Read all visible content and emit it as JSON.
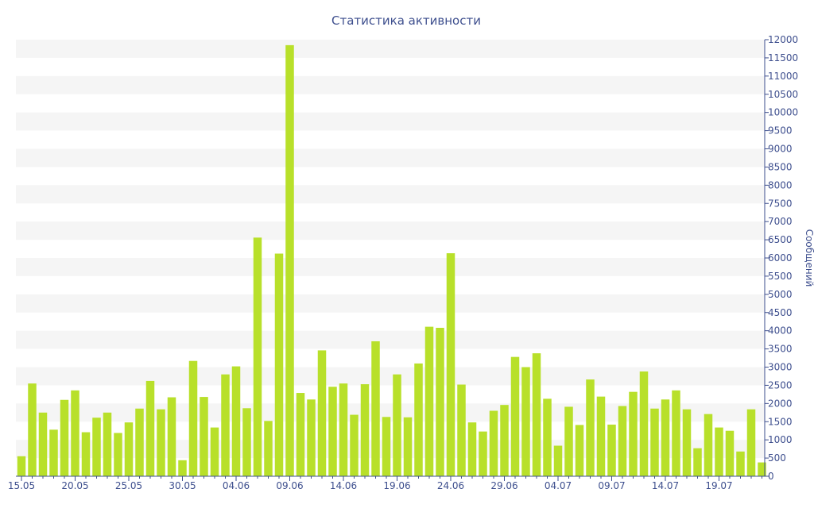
{
  "chart_data": {
    "type": "bar",
    "title": "Статистика активности",
    "ylabel": "Сообщений",
    "xlabel": "",
    "ylim": [
      0,
      12000
    ],
    "yticks": [
      0,
      500,
      1000,
      1500,
      2000,
      2500,
      3000,
      3500,
      4000,
      4500,
      5000,
      5500,
      6000,
      6500,
      7000,
      7500,
      8000,
      8500,
      9000,
      9500,
      10000,
      10500,
      11000,
      11500,
      12000
    ],
    "xtick_labels": [
      "15.05",
      "20.05",
      "25.05",
      "30.05",
      "04.06",
      "09.06",
      "14.06",
      "19.06",
      "24.06",
      "29.06",
      "04.07",
      "09.07",
      "14.07",
      "19.07"
    ],
    "xtick_every": 5,
    "grid": "horizontal-bands",
    "colors": {
      "bar": "#b8e02a",
      "axis": "#3e4f8e",
      "band": "#f5f5f5"
    },
    "categories": [
      "15.05",
      "16.05",
      "17.05",
      "18.05",
      "19.05",
      "20.05",
      "21.05",
      "22.05",
      "23.05",
      "24.05",
      "25.05",
      "26.05",
      "27.05",
      "28.05",
      "29.05",
      "30.05",
      "31.05",
      "01.06",
      "02.06",
      "03.06",
      "04.06",
      "05.06",
      "06.06",
      "07.06",
      "08.06",
      "09.06",
      "10.06",
      "11.06",
      "12.06",
      "13.06",
      "14.06",
      "15.06",
      "16.06",
      "17.06",
      "18.06",
      "19.06",
      "20.06",
      "21.06",
      "22.06",
      "23.06",
      "24.06",
      "25.06",
      "26.06",
      "27.06",
      "28.06",
      "29.06",
      "30.06",
      "01.07",
      "02.07",
      "03.07",
      "04.07",
      "05.07",
      "06.07",
      "07.07",
      "08.07",
      "09.07",
      "10.07",
      "11.07",
      "12.07",
      "13.07",
      "14.07",
      "15.07",
      "16.07",
      "17.07",
      "18.07",
      "19.07",
      "20.07",
      "21.07",
      "22.07",
      "23.07"
    ],
    "values": [
      550,
      2550,
      1750,
      1280,
      2100,
      2360,
      1210,
      1610,
      1750,
      1190,
      1480,
      1860,
      2620,
      1840,
      2170,
      440,
      3170,
      2180,
      1340,
      2800,
      3020,
      1870,
      6560,
      1520,
      6120,
      11850,
      2290,
      2110,
      3460,
      2460,
      2550,
      1690,
      2530,
      3710,
      1630,
      2800,
      1620,
      3100,
      4110,
      4080,
      6130,
      2520,
      1480,
      1230,
      1800,
      1960,
      3280,
      3000,
      3380,
      2130,
      840,
      1910,
      1410,
      2660,
      2190,
      1420,
      1930,
      2320,
      2880,
      1860,
      2110,
      2360,
      1840,
      770,
      1710,
      1340,
      1250,
      680,
      1840,
      380
    ]
  }
}
